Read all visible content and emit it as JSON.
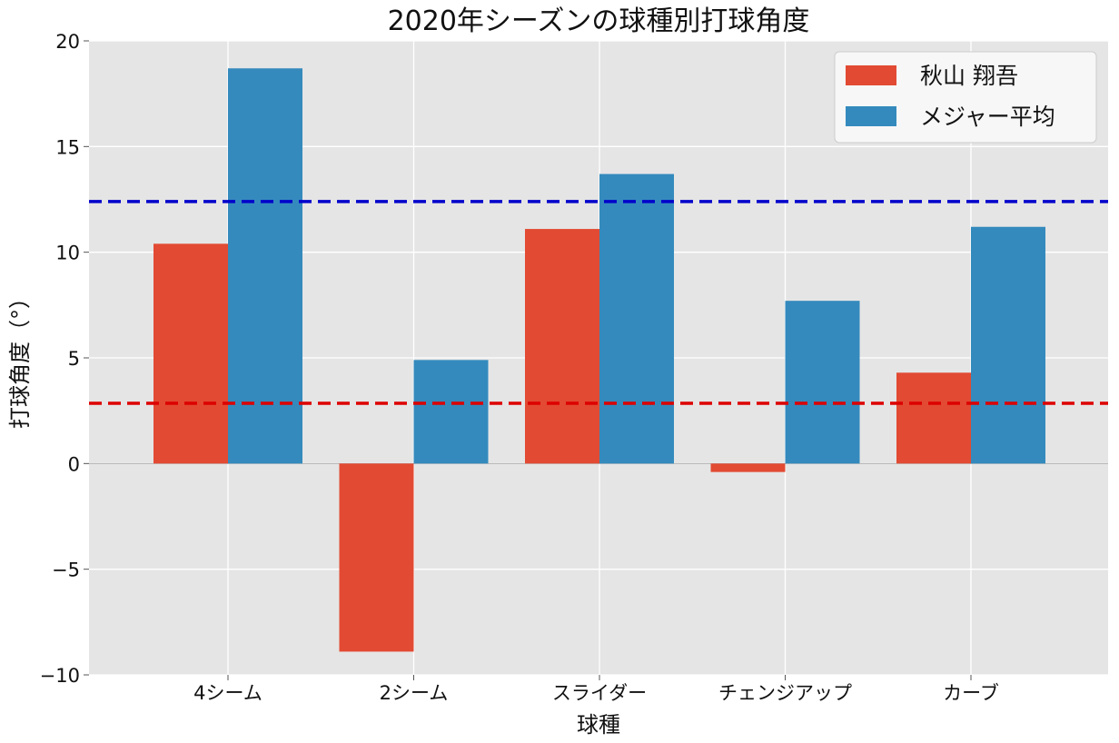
{
  "chart_data": {
    "type": "bar",
    "title": "2020年シーズンの球種別打球角度",
    "xlabel": "球種",
    "ylabel": "打球角度（°）",
    "categories": [
      "4シーム",
      "2シーム",
      "スライダー",
      "チェンジアップ",
      "カーブ"
    ],
    "series": [
      {
        "name": "秋山 翔吾",
        "values": [
          10.4,
          -8.9,
          11.1,
          -0.4,
          4.3
        ],
        "color": "#E24A33"
      },
      {
        "name": "メジャー平均",
        "values": [
          18.7,
          4.9,
          13.7,
          7.7,
          11.2
        ],
        "color": "#348ABD"
      }
    ],
    "reference_lines": [
      {
        "value": 12.4,
        "color": "#0000CC",
        "style": "dashed"
      },
      {
        "value": 2.85,
        "color": "#DD0000",
        "style": "dashed"
      }
    ],
    "ylim": [
      -10,
      20
    ],
    "yticks": [
      {
        "value": -10,
        "label": "−10"
      },
      {
        "value": -5,
        "label": "−5"
      },
      {
        "value": 0,
        "label": "0"
      },
      {
        "value": 5,
        "label": "5"
      },
      {
        "value": 10,
        "label": "10"
      },
      {
        "value": 15,
        "label": "15"
      },
      {
        "value": 20,
        "label": "20"
      }
    ],
    "grid": true,
    "background": "#E5E5E5",
    "legend_position": "top-right"
  }
}
